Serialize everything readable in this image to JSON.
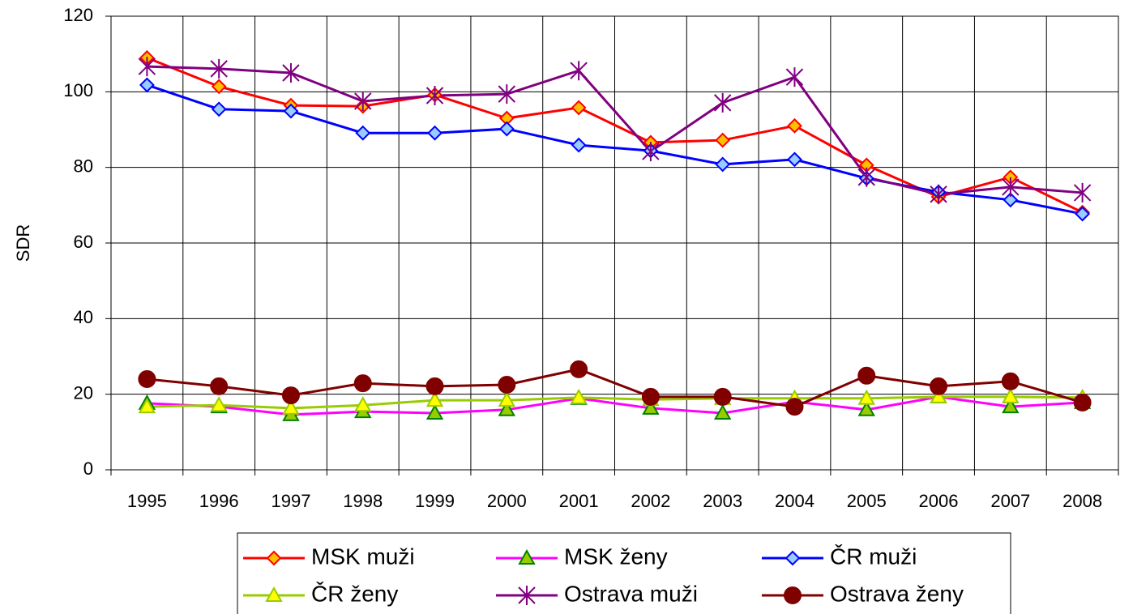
{
  "chart_data": {
    "type": "line",
    "y_label": "SDR",
    "categories": [
      "1995",
      "1996",
      "1997",
      "1998",
      "1999",
      "2000",
      "2001",
      "2002",
      "2003",
      "2004",
      "2005",
      "2006",
      "2007",
      "2008"
    ],
    "ylim": [
      0,
      120
    ],
    "yticks": [
      0,
      20,
      40,
      60,
      80,
      100,
      120
    ],
    "grid": true,
    "legend": "bottom",
    "series": [
      {
        "name": "MSK muži",
        "color": "#ff0000",
        "marker": "diamond",
        "marker_fill": "#ffc000",
        "marker_stroke": "#ff0000",
        "values": [
          109,
          101.4,
          96.4,
          96.2,
          99.2,
          93,
          95.8,
          86.6,
          87.2,
          91,
          80.6,
          72.2,
          77.4,
          68.1
        ]
      },
      {
        "name": "MSK ženy",
        "color": "#ff00ff",
        "marker": "triangle",
        "marker_fill": "#99cc00",
        "marker_stroke": "#008000",
        "values": [
          17.6,
          16.7,
          14.6,
          15.4,
          15,
          15.9,
          18.9,
          16.3,
          15,
          18,
          15.9,
          19.3,
          16.7,
          17.8
        ]
      },
      {
        "name": "ČR muži",
        "color": "#0000ff",
        "marker": "diamond",
        "marker_fill": "#99ccff",
        "marker_stroke": "#0000ff",
        "values": [
          101.8,
          95.4,
          94.9,
          89.1,
          89.1,
          90.2,
          85.9,
          84.4,
          80.8,
          82.1,
          77.1,
          73.5,
          71.4,
          67.7
        ]
      },
      {
        "name": "ČR ženy",
        "color": "#99cc00",
        "marker": "triangle",
        "marker_fill": "#ffff00",
        "marker_stroke": "#99cc00",
        "values": [
          16.7,
          17.1,
          16.3,
          17.1,
          18.4,
          18.4,
          19.1,
          18.6,
          18.9,
          18.9,
          18.9,
          19.3,
          19.3,
          19.1
        ]
      },
      {
        "name": "Ostrava muži",
        "color": "#800080",
        "marker": "star",
        "marker_fill": "#800080",
        "marker_stroke": "#800080",
        "values": [
          106.7,
          106.1,
          105,
          97.5,
          99,
          99.4,
          105.6,
          84.2,
          97.1,
          103.9,
          77.4,
          72.9,
          74.8,
          73.3
        ]
      },
      {
        "name": "Ostrava ženy",
        "color": "#800000",
        "marker": "circle",
        "marker_fill": "#800000",
        "marker_stroke": "#800000",
        "values": [
          24,
          22.1,
          19.7,
          22.9,
          22.1,
          22.5,
          26.6,
          19.3,
          19.3,
          16.7,
          24.9,
          22.1,
          23.4,
          17.8
        ]
      }
    ]
  }
}
